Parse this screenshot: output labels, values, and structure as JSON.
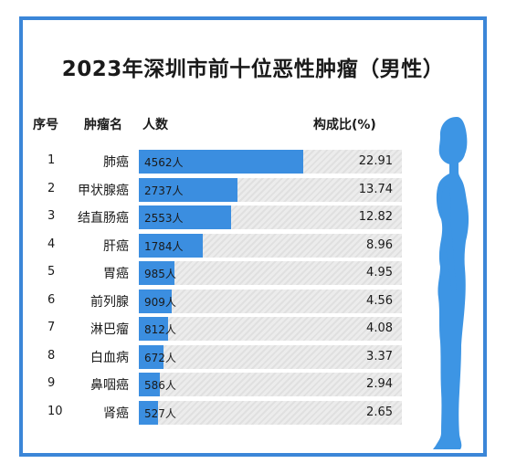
{
  "chart_data": {
    "type": "bar",
    "title": "2023年深圳市前十位恶性肿瘤（男性）",
    "columns": {
      "rank": "序号",
      "name": "肿瘤名",
      "count": "人数",
      "ratio": "构成比(%)"
    },
    "count_unit": "人",
    "rows": [
      {
        "rank": "1",
        "name": "肺癌",
        "count": 4562,
        "ratio": "22.91"
      },
      {
        "rank": "2",
        "name": "甲状腺癌",
        "count": 2737,
        "ratio": "13.74"
      },
      {
        "rank": "3",
        "name": "结直肠癌",
        "count": 2553,
        "ratio": "12.82"
      },
      {
        "rank": "4",
        "name": "肝癌",
        "count": 1784,
        "ratio": "8.96"
      },
      {
        "rank": "5",
        "name": "胃癌",
        "count": 985,
        "ratio": "4.95"
      },
      {
        "rank": "6",
        "name": "前列腺",
        "count": 909,
        "ratio": "4.56"
      },
      {
        "rank": "7",
        "name": "淋巴瘤",
        "count": 812,
        "ratio": "4.08"
      },
      {
        "rank": "8",
        "name": "白血病",
        "count": 672,
        "ratio": "3.37"
      },
      {
        "rank": "9",
        "name": "鼻咽癌",
        "count": 586,
        "ratio": "2.94"
      },
      {
        "rank": "10",
        "name": "肾癌",
        "count": 527,
        "ratio": "2.65"
      }
    ],
    "bar_color": "#3b8ee0",
    "track_color": "#ececec",
    "border_color": "#3b86d8",
    "figure_color": "#3d95e4",
    "figure_icon": "male-silhouette-icon"
  }
}
